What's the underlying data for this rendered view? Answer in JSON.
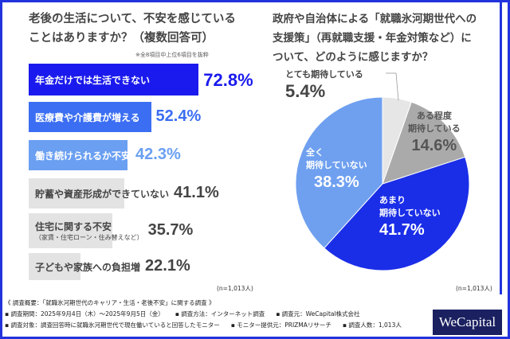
{
  "chart_data": [
    {
      "type": "bar",
      "orientation": "horizontal",
      "title": "老後の生活について、不安を感じていることはありますか？（複数回答可）",
      "note": "※全8項目中上位6項目を抜粋",
      "categories": [
        "年金だけでは生活できない",
        "医療費や介護費が増える",
        "働き続けられるか不安",
        "貯蓄や資産形成ができていない",
        "住宅に関する不安",
        "子どもや家族への負担増"
      ],
      "sub_labels": [
        "",
        "",
        "",
        "",
        "（家賃・住宅ローン・住み替えなど）",
        ""
      ],
      "values": [
        72.8,
        52.4,
        42.3,
        41.1,
        35.7,
        22.1
      ],
      "value_labels": [
        "72.8%",
        "52.4%",
        "42.3%",
        "41.1%",
        "35.7%",
        "22.1%"
      ],
      "colors": [
        "#1a1aee",
        "#3b6ef2",
        "#6a9ff2",
        "#e3e3e3",
        "#e3e3e3",
        "#e3e3e3"
      ],
      "label_colors": [
        "#1a1aee",
        "#3b6ef2",
        "#6a9ff2",
        "#444444",
        "#444444",
        "#444444"
      ],
      "n": "(n=1,013人)"
    },
    {
      "type": "pie",
      "title": "政府や自治体による「就職氷河期世代への支援策」（再就職支援・年金対策など）について、どのように感じますか？",
      "slices": [
        {
          "label": "とても期待している",
          "value": 5.4,
          "text": "5.4%",
          "color": "#e6e6e6"
        },
        {
          "label": "ある程度期待している",
          "value": 14.6,
          "text": "14.6%",
          "color": "#aaaaaa"
        },
        {
          "label": "あまり期待していない",
          "value": 41.7,
          "text": "41.7%",
          "color": "#1a2ee8"
        },
        {
          "label": "全く期待していない",
          "value": 38.3,
          "text": "38.3%",
          "color": "#6fa0f0"
        }
      ],
      "n": "(n=1,013人)"
    }
  ],
  "pie_labels": {
    "s0a": "とても期待している",
    "s1a": "ある程度",
    "s1b": "期待している",
    "s2a": "あまり",
    "s2b": "期待していない",
    "s3a": "全く",
    "s3b": "期待していない"
  },
  "left_title": [
    "老後の生活について、不安を感じている",
    "ことはありますか？（複数回答可）"
  ],
  "right_title": [
    "政府や自治体による「就職氷河期世代への",
    "支援策」（再就職支援・年金対策など）に",
    "ついて、どのように感じますか？"
  ],
  "footer": {
    "line1": "《 調査概要：「就職氷河期世代のキャリア・生活・老後不安」に関する調査 》",
    "period": "▪ 調査期間：2025年9月4日（木）～2025年9月5日（金）",
    "method": "▪ 調査方法：インターネット調査",
    "source": "▪ 調査元：WeCapital株式会社",
    "target": "▪ 調査対象：調査回答時に就職氷河期世代で現在働いていると回答したモニター",
    "provider": "▪ モニター提供元：PRIZMAリサーチ",
    "count": "▪ 調査人数：1,013人"
  },
  "logo": "WeCapital",
  "colors": {
    "frame": "#2233dd",
    "logo_bg": "#1a2060"
  }
}
